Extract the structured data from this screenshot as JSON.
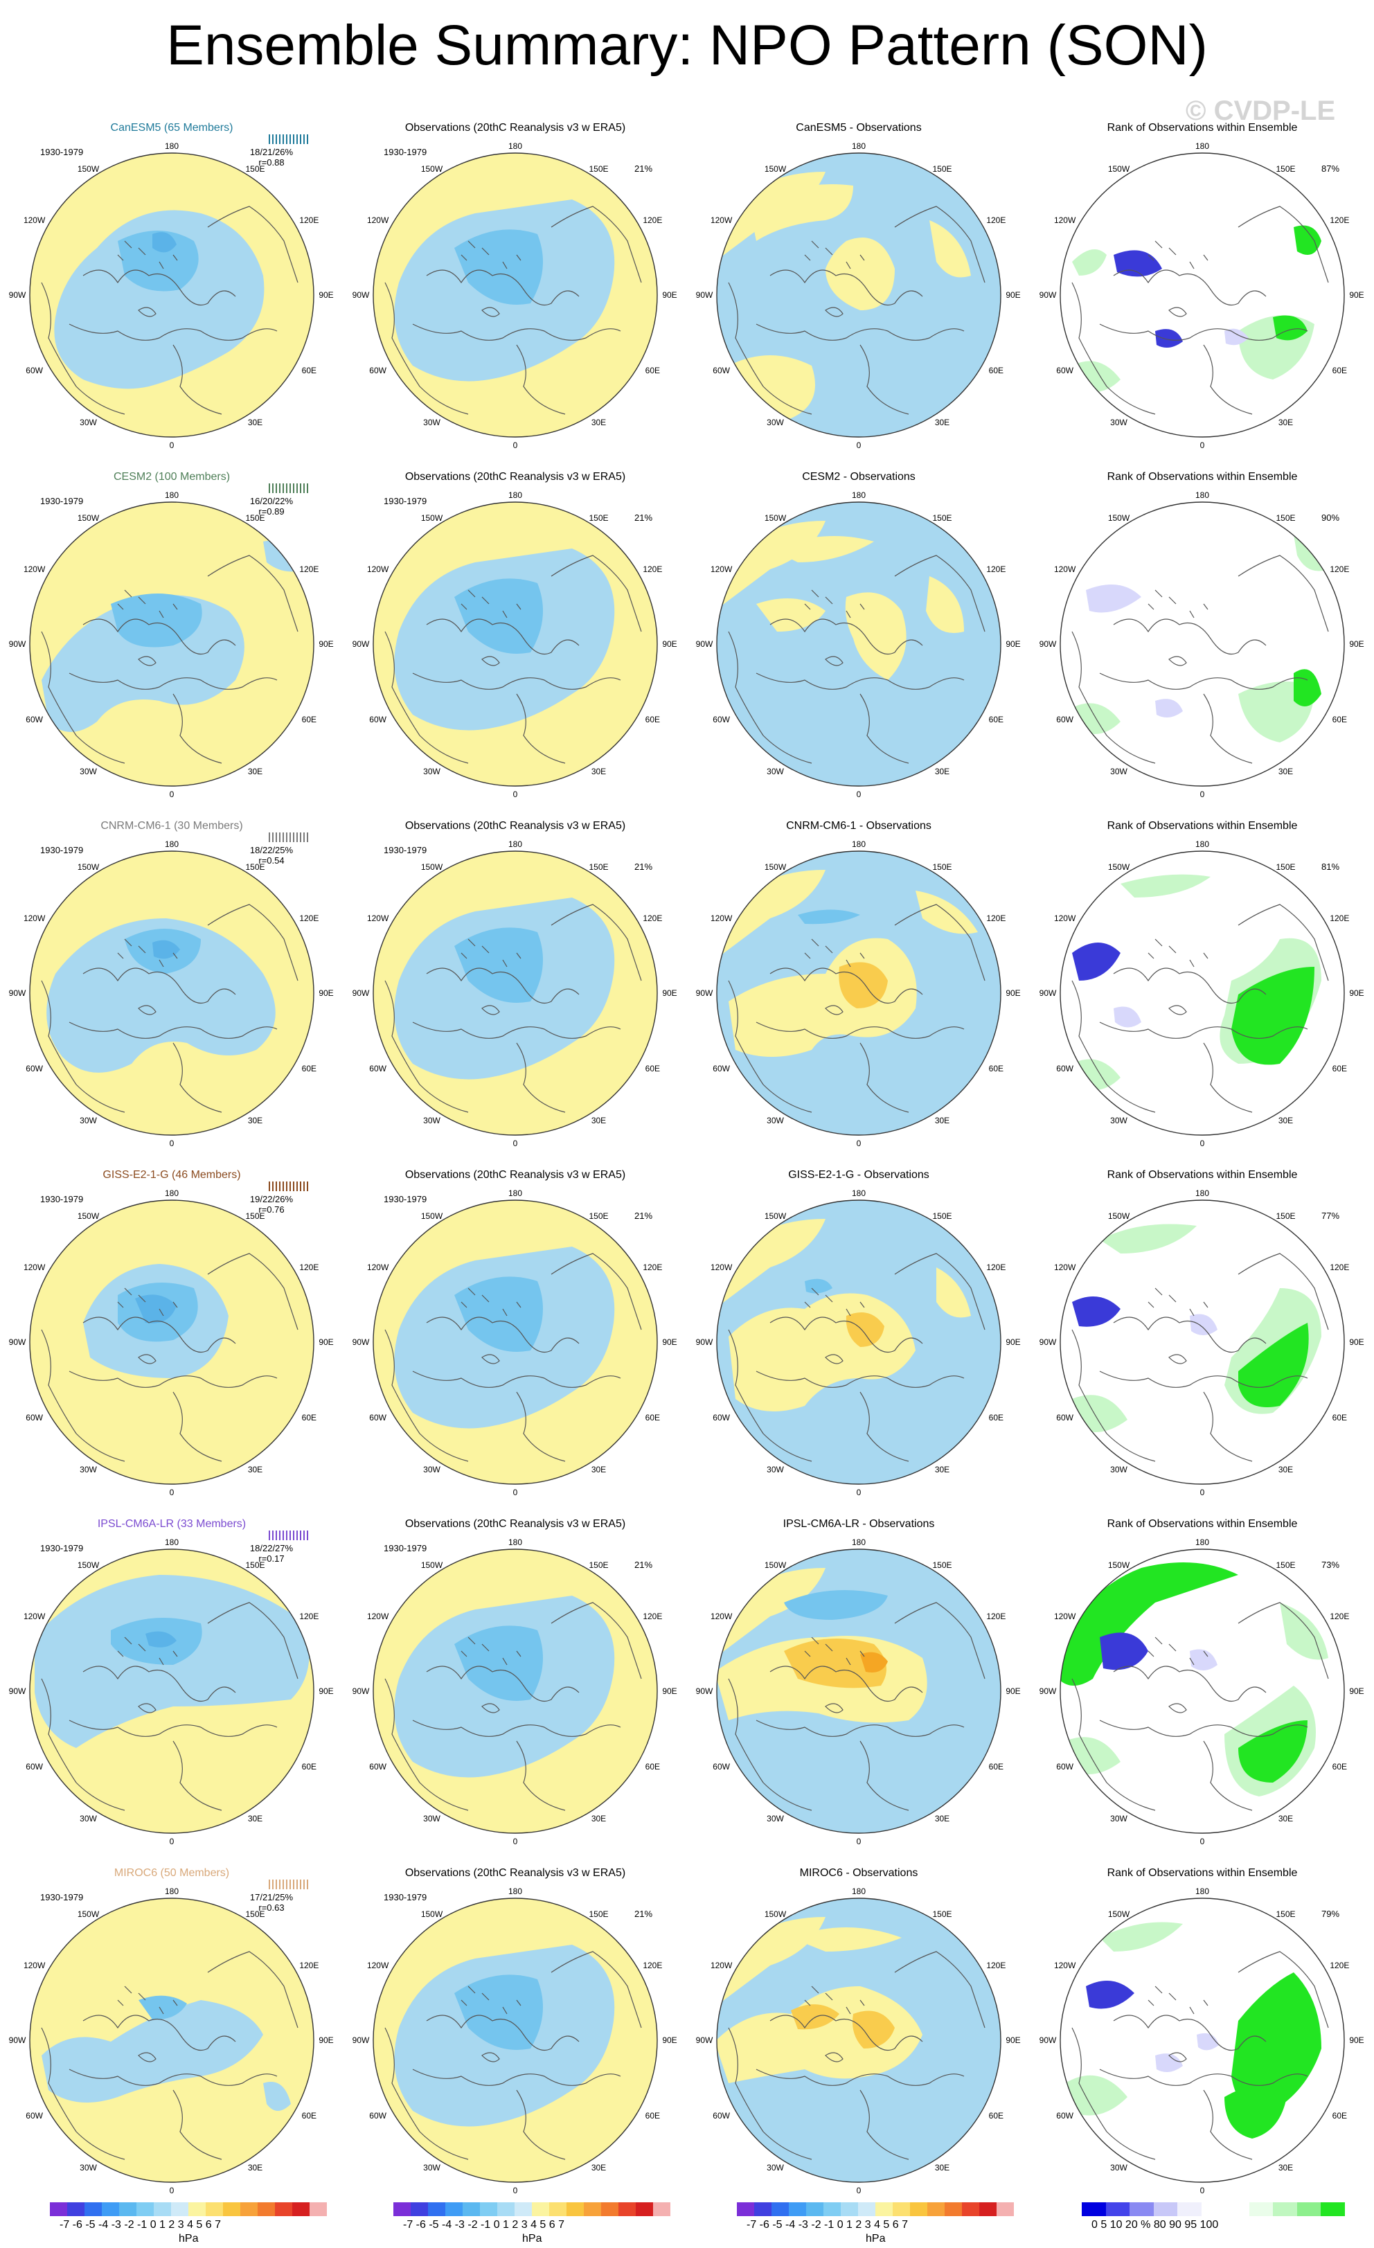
{
  "title": "Ensemble Summary: NPO Pattern (SON)",
  "watermark": "© CVDP-LE",
  "grid_labels": {
    "top": "180",
    "bottom": "0",
    "ul": "150W",
    "ur": "150E",
    "ul2": "120W",
    "ur2": "120E",
    "ml": "90W",
    "mr": "90E",
    "ll2": "60W",
    "lr2": "60E",
    "ll": "30W",
    "lr": "30E"
  },
  "colors": {
    "neg_light": "#a8d8f0",
    "neg_mid": "#75c5ee",
    "neg_dark": "#5bb3e8",
    "pos_light": "#fbf4a0",
    "pos_mid": "#f9cc4d",
    "pos_dark": "#f5a623",
    "rank_low_light": "#d8d8fb",
    "rank_low_dark": "#3a3ad8",
    "rank_high_light": "#c8f7c8",
    "rank_high_dark": "#22e522"
  },
  "rows": [
    {
      "model_title": "CanESM5 (65 Members)",
      "model_color": "#1f7a9a",
      "period": "1930-1979",
      "stats": "18/21/26%",
      "r": "r=0.88",
      "obs_title": "Observations (20thC Reanalysis v3 w ERA5)",
      "obs_period": "1930-1979",
      "obs_pct": "21%",
      "diff_title": "CanESM5 - Observations",
      "rank_title": "Rank of Observations within Ensemble",
      "rank_pct": "87%"
    },
    {
      "model_title": "CESM2 (100 Members)",
      "model_color": "#4f7f58",
      "period": "1930-1979",
      "stats": "16/20/22%",
      "r": "r=0.89",
      "obs_title": "Observations (20thC Reanalysis v3 w ERA5)",
      "obs_period": "1930-1979",
      "obs_pct": "21%",
      "diff_title": "CESM2 - Observations",
      "rank_title": "Rank of Observations within Ensemble",
      "rank_pct": "90%"
    },
    {
      "model_title": "CNRM-CM6-1 (30 Members)",
      "model_color": "#7a7a7a",
      "period": "1930-1979",
      "stats": "18/22/25%",
      "r": "r=0.54",
      "obs_title": "Observations (20thC Reanalysis v3 w ERA5)",
      "obs_period": "1930-1979",
      "obs_pct": "21%",
      "diff_title": "CNRM-CM6-1 - Observations",
      "rank_title": "Rank of Observations within Ensemble",
      "rank_pct": "81%"
    },
    {
      "model_title": "GISS-E2-1-G (46 Members)",
      "model_color": "#8a4a1e",
      "period": "1930-1979",
      "stats": "19/22/26%",
      "r": "r=0.76",
      "obs_title": "Observations (20thC Reanalysis v3 w ERA5)",
      "obs_period": "1930-1979",
      "obs_pct": "21%",
      "diff_title": "GISS-E2-1-G - Observations",
      "rank_title": "Rank of Observations within Ensemble",
      "rank_pct": "77%"
    },
    {
      "model_title": "IPSL-CM6A-LR (33 Members)",
      "model_color": "#7a4ad0",
      "period": "1930-1979",
      "stats": "18/22/27%",
      "r": "r=0.17",
      "obs_title": "Observations (20thC Reanalysis v3 w ERA5)",
      "obs_period": "1930-1979",
      "obs_pct": "21%",
      "diff_title": "IPSL-CM6A-LR - Observations",
      "rank_title": "Rank of Observations within Ensemble",
      "rank_pct": "73%"
    },
    {
      "model_title": "MIROC6 (50 Members)",
      "model_color": "#d8a87a",
      "period": "1930-1979",
      "stats": "17/21/25%",
      "r": "r=0.63",
      "obs_title": "Observations (20thC Reanalysis v3 w ERA5)",
      "obs_period": "1930-1979",
      "obs_pct": "21%",
      "diff_title": "MIROC6 - Observations",
      "rank_title": "Rank of Observations within Ensemble",
      "rank_pct": "79%"
    }
  ],
  "colorbar_hpa": {
    "labels": "-7 -6 -5 -4 -3 -2 -1 0  1  2  3  4  5  6  7",
    "unit": "hPa",
    "colors": [
      "#7b2fd8",
      "#4040e0",
      "#3070f0",
      "#3f9cf5",
      "#5bb8f0",
      "#7fcdf3",
      "#a8dcf5",
      "#cfeaf8",
      "#fbf4a0",
      "#fce070",
      "#f9c53f",
      "#f7a23a",
      "#f27b2e",
      "#e8442a",
      "#d62020",
      "#f4b0b0"
    ]
  },
  "colorbar_pct": {
    "labels": "0   5  10    20   %   80    90  95 100",
    "unit": "%",
    "colors": [
      "#0000e0",
      "#4444ea",
      "#8a8af2",
      "#c8c8f8",
      "#f0f0fc",
      "#ffffff",
      "#ffffff",
      "#eafdea",
      "#c0f7c0",
      "#8cef8c",
      "#22e522"
    ]
  }
}
